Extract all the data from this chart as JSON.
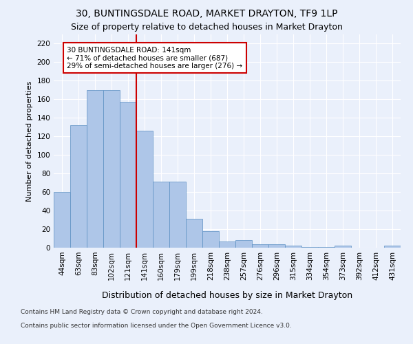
{
  "title1": "30, BUNTINGSDALE ROAD, MARKET DRAYTON, TF9 1LP",
  "title2": "Size of property relative to detached houses in Market Drayton",
  "xlabel": "Distribution of detached houses by size in Market Drayton",
  "ylabel": "Number of detached properties",
  "categories": [
    "44sqm",
    "63sqm",
    "83sqm",
    "102sqm",
    "121sqm",
    "141sqm",
    "160sqm",
    "179sqm",
    "199sqm",
    "218sqm",
    "238sqm",
    "257sqm",
    "276sqm",
    "296sqm",
    "315sqm",
    "334sqm",
    "354sqm",
    "373sqm",
    "392sqm",
    "412sqm",
    "431sqm"
  ],
  "values": [
    60,
    132,
    170,
    170,
    157,
    126,
    71,
    71,
    31,
    18,
    7,
    8,
    4,
    4,
    2,
    1,
    1,
    2,
    0,
    0,
    2
  ],
  "bar_color": "#aec6e8",
  "bar_edge_color": "#5a8fc2",
  "highlight_index": 5,
  "highlight_line_color": "#cc0000",
  "annotation_text": "30 BUNTINGSDALE ROAD: 141sqm\n← 71% of detached houses are smaller (687)\n29% of semi-detached houses are larger (276) →",
  "annotation_box_color": "#ffffff",
  "annotation_box_edge_color": "#cc0000",
  "ylim": [
    0,
    230
  ],
  "yticks": [
    0,
    20,
    40,
    60,
    80,
    100,
    120,
    140,
    160,
    180,
    200,
    220
  ],
  "footer1": "Contains HM Land Registry data © Crown copyright and database right 2024.",
  "footer2": "Contains public sector information licensed under the Open Government Licence v3.0.",
  "bg_color": "#eaf0fb",
  "plot_bg_color": "#eaf0fb",
  "title1_fontsize": 10,
  "title2_fontsize": 9,
  "ylabel_fontsize": 8,
  "xlabel_fontsize": 9,
  "tick_fontsize": 7.5,
  "annotation_fontsize": 7.5,
  "footer_fontsize": 6.5
}
